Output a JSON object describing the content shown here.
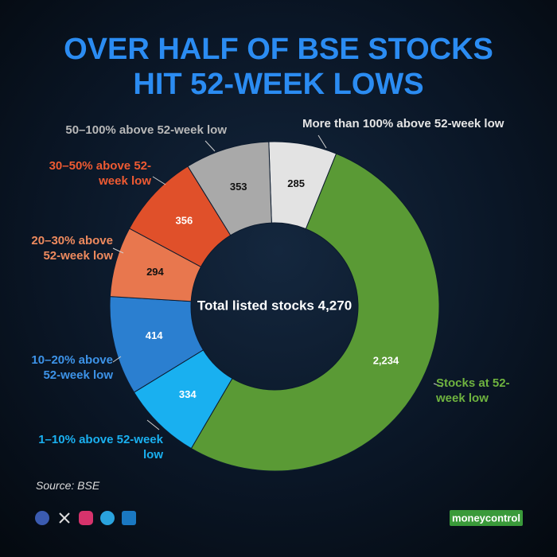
{
  "chart_data": {
    "type": "donut",
    "title": [
      "OVER HALF OF BSE STOCKS",
      "HIT 52-WEEK LOWS"
    ],
    "center_label": "Total listed stocks 4,270",
    "categories": [
      "More than 100% above 52-week low",
      "Stocks at 52-week low",
      "1–10% above 52-week low",
      "10–20% above 52-week low",
      "20–30% above 52-week low",
      "30–50% above 52-week low",
      "50–100% above 52-week low"
    ],
    "values": [
      285,
      2234,
      334,
      414,
      294,
      356,
      353
    ],
    "value_labels": [
      "285",
      "2,234",
      "334",
      "414",
      "294",
      "356",
      "353"
    ],
    "colors": [
      "#e3e3e3",
      "#5a9a35",
      "#19b0f0",
      "#2b7fd0",
      "#e8774e",
      "#e0502a",
      "#a9a9a9"
    ],
    "label_colors": [
      "#e6e6e6",
      "#6fb33f",
      "#1ab0f0",
      "#3d93e8",
      "#ee8a5e",
      "#ee5a32",
      "#b8b8b8"
    ],
    "source": "Source: BSE",
    "brand": "moneycontrol"
  }
}
